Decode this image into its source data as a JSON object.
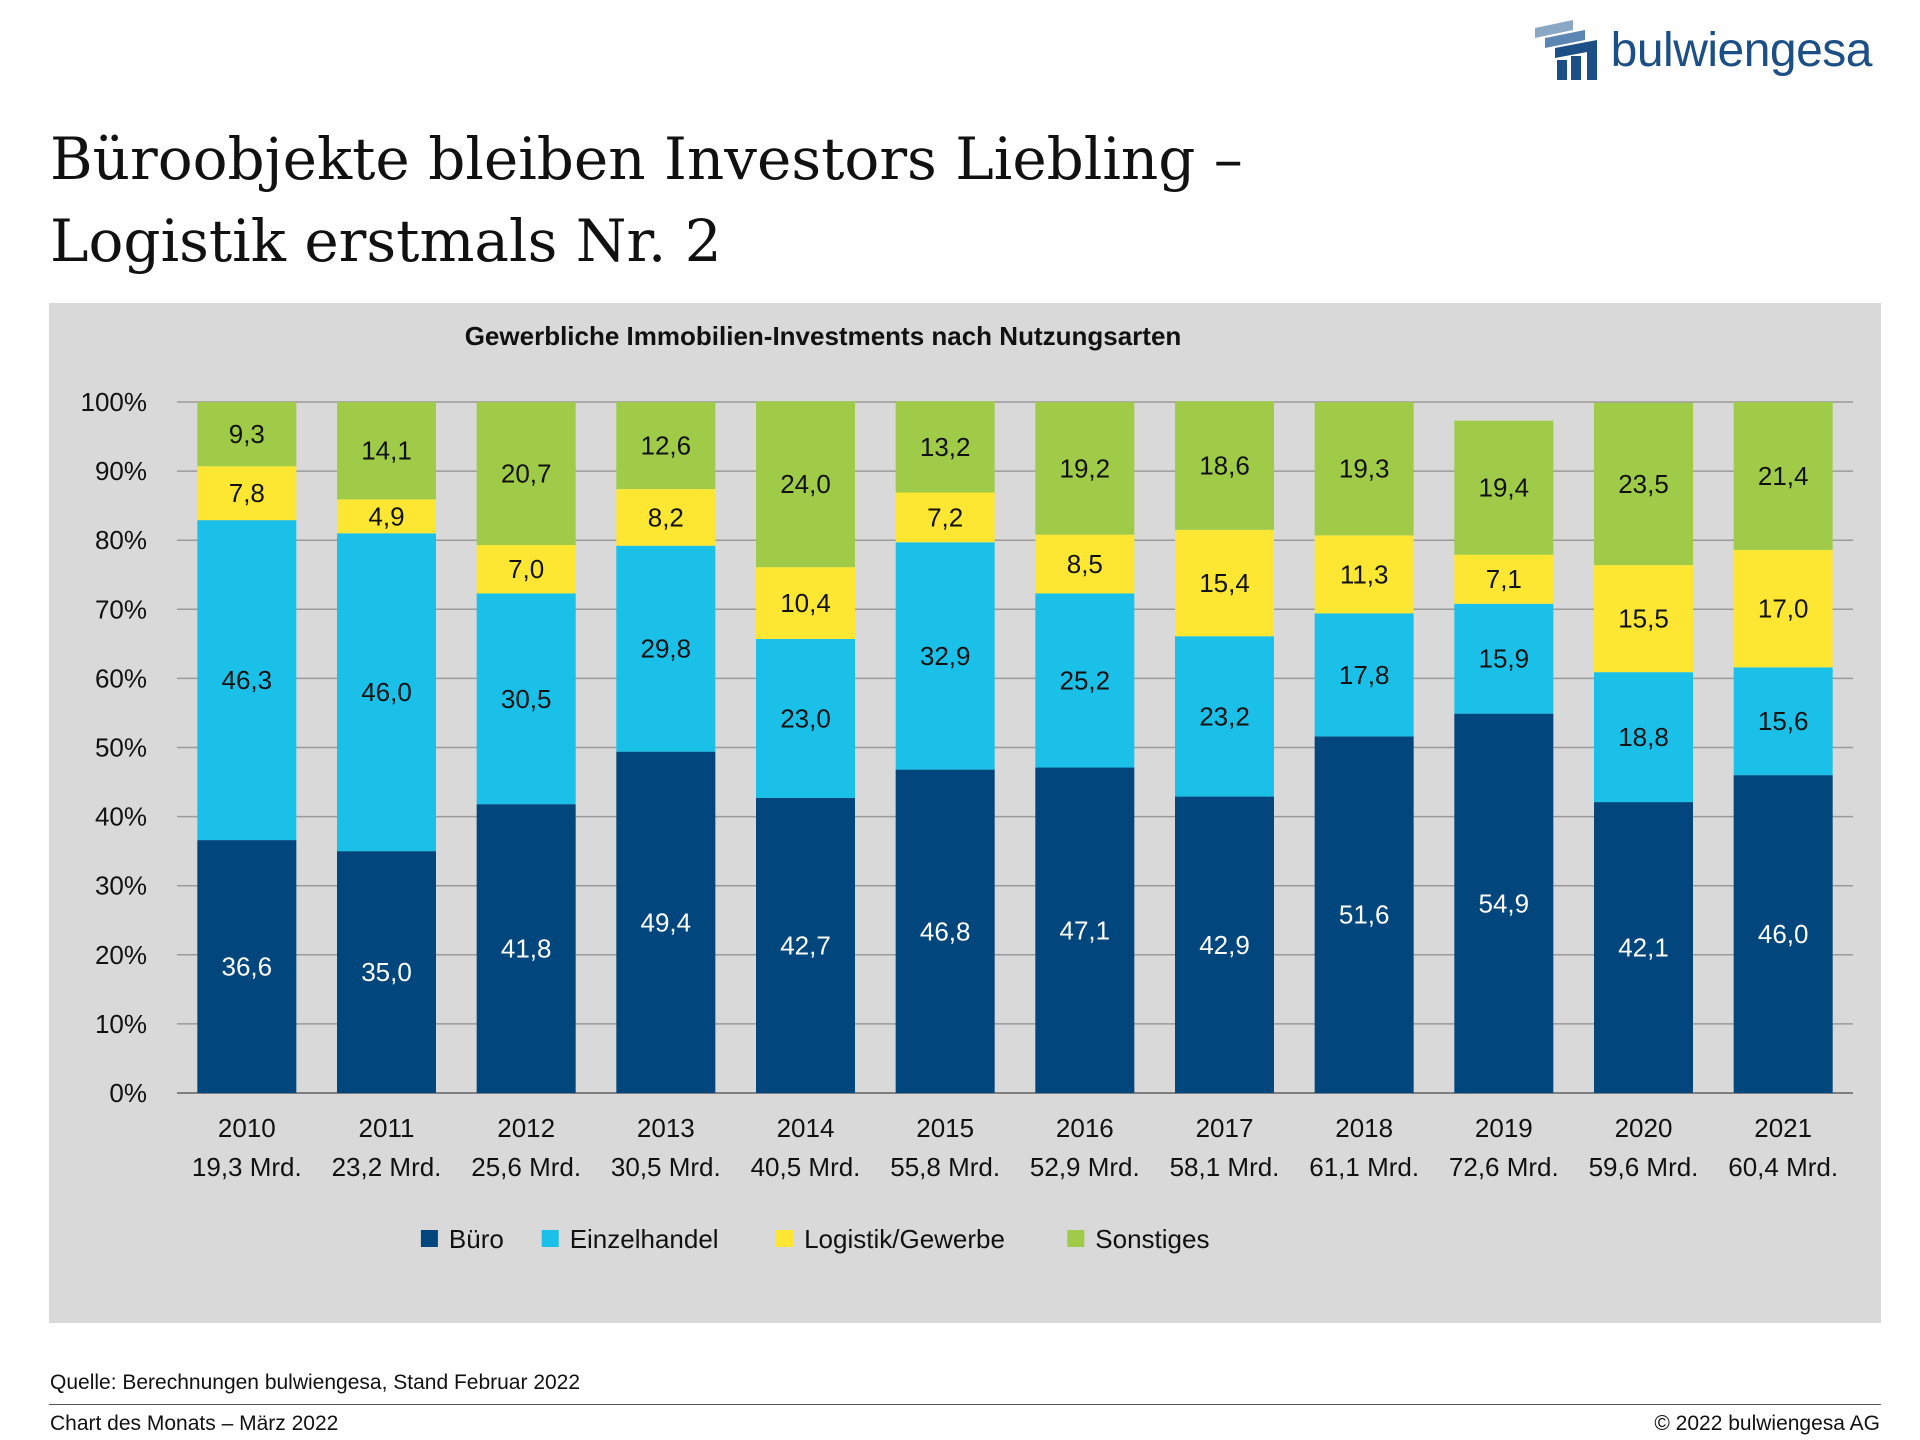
{
  "brand": {
    "name": "bulwiengesa"
  },
  "title": {
    "line1": "Büroobjekte bleiben Investors Liebling –",
    "line2": "Logistik erstmals Nr. 2"
  },
  "colors": {
    "buero": "#01467d",
    "einzelhandel": "#1ac0e8",
    "logistik": "#fde732",
    "sonstiges": "#9fcb48",
    "panel": "#d9d9d9"
  },
  "chart_data": {
    "type": "bar",
    "stacked": true,
    "title": "Gewerbliche Immobilien-Investments nach Nutzungsarten",
    "ylim": [
      0,
      100
    ],
    "yticks": [
      "0%",
      "10%",
      "20%",
      "30%",
      "40%",
      "50%",
      "60%",
      "70%",
      "80%",
      "90%",
      "100%"
    ],
    "categories": [
      "2010",
      "2011",
      "2012",
      "2013",
      "2014",
      "2015",
      "2016",
      "2017",
      "2018",
      "2019",
      "2020",
      "2021"
    ],
    "category_sublabels": [
      "19,3 Mrd.",
      "23,2 Mrd.",
      "25,6 Mrd.",
      "30,5 Mrd.",
      "40,5 Mrd.",
      "55,8 Mrd.",
      "52,9 Mrd.",
      "58,1 Mrd.",
      "61,1 Mrd.",
      "72,6 Mrd.",
      "59,6 Mrd.",
      "60,4 Mrd."
    ],
    "legend_position": "bottom",
    "grid": true,
    "series": [
      {
        "name": "Büro",
        "color": "#01467d",
        "values": [
          36.6,
          35.0,
          41.8,
          49.4,
          42.7,
          46.8,
          47.1,
          42.9,
          51.6,
          54.9,
          42.1,
          46.0
        ],
        "labels": [
          "36,6",
          "35,0",
          "41,8",
          "49,4",
          "42,7",
          "46,8",
          "47,1",
          "42,9",
          "51,6",
          "54,9",
          "42,1",
          "46,0"
        ]
      },
      {
        "name": "Einzelhandel",
        "color": "#1ac0e8",
        "values": [
          46.3,
          46.0,
          30.5,
          29.8,
          23.0,
          32.9,
          25.2,
          23.2,
          17.8,
          15.9,
          18.8,
          15.6
        ],
        "labels": [
          "46,3",
          "46,0",
          "30,5",
          "29,8",
          "23,0",
          "32,9",
          "25,2",
          "23,2",
          "17,8",
          "15,9",
          "18,8",
          "15,6"
        ]
      },
      {
        "name": "Logistik/Gewerbe",
        "color": "#fde732",
        "values": [
          7.8,
          4.9,
          7.0,
          8.2,
          10.4,
          7.2,
          8.5,
          15.4,
          11.3,
          7.1,
          15.5,
          17.0
        ],
        "labels": [
          "7,8",
          "4,9",
          "7,0",
          "8,2",
          "10,4",
          "7,2",
          "8,5",
          "15,4",
          "11,3",
          "7,1",
          "15,5",
          "17,0"
        ]
      },
      {
        "name": "Sonstiges",
        "color": "#9fcb48",
        "values": [
          9.3,
          14.1,
          20.7,
          12.6,
          24.0,
          13.2,
          19.2,
          18.6,
          19.3,
          19.4,
          23.5,
          21.4
        ],
        "labels": [
          "9,3",
          "14,1",
          "20,7",
          "12,6",
          "24,0",
          "13,2",
          "19,2",
          "18,6",
          "19,3",
          "19,4",
          "23,5",
          "21,4"
        ]
      }
    ]
  },
  "source": "Quelle: Berechnungen bulwiengesa, Stand Februar 2022",
  "footer": {
    "left": "Chart des Monats – März 2022",
    "right": "© 2022 bulwiengesa AG"
  }
}
